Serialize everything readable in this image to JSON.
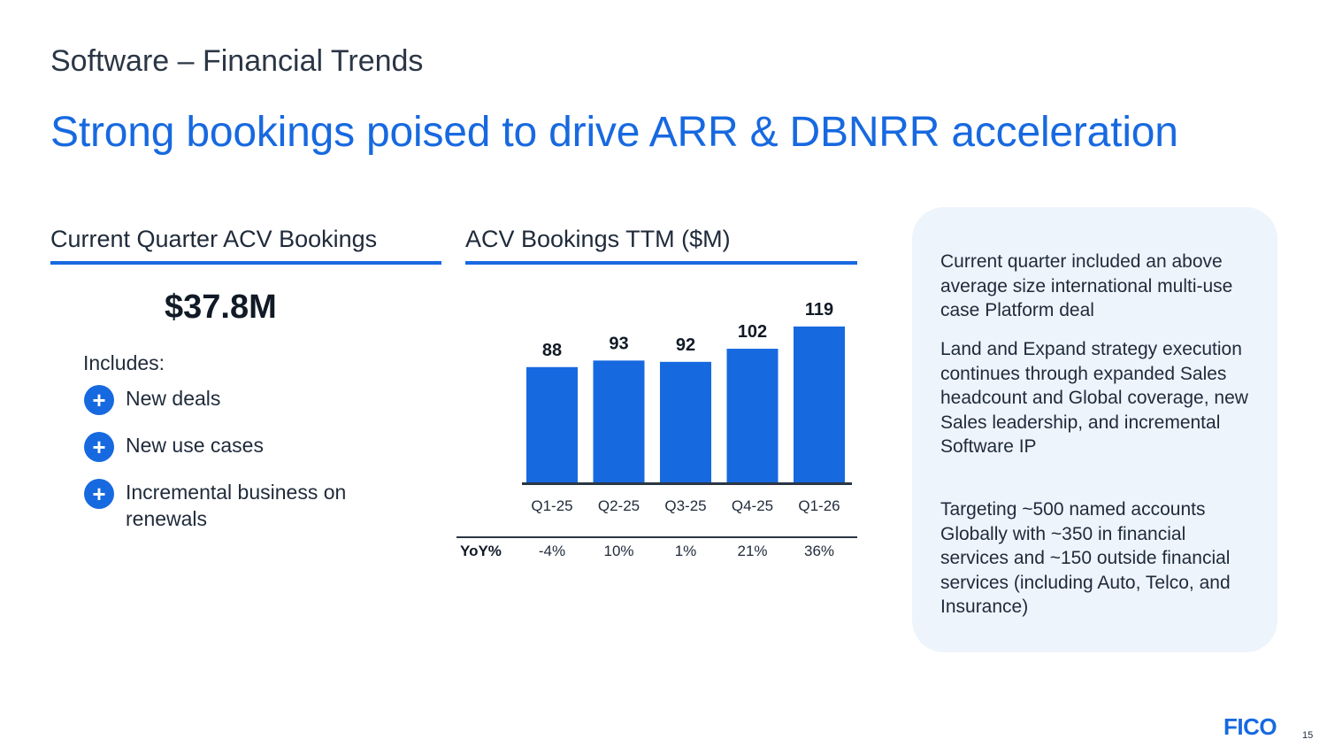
{
  "slide": {
    "kicker": "Software – Financial Trends",
    "headline": "Strong bookings poised to drive ARR & DBNRR acceleration",
    "page_number": "15",
    "logo_text": "FICO"
  },
  "left": {
    "heading": "Current Quarter ACV Bookings",
    "value": "$37.8M",
    "includes_label": "Includes:",
    "items": [
      "New deals",
      "New use cases",
      "Incremental business on renewals"
    ]
  },
  "chart_data": {
    "type": "bar",
    "title": "ACV Bookings TTM ($M)",
    "categories": [
      "Q1-25",
      "Q2-25",
      "Q3-25",
      "Q4-25",
      "Q1-26"
    ],
    "values": [
      88,
      93,
      92,
      102,
      119
    ],
    "yoy_label": "YoY%",
    "yoy": [
      "-4%",
      "10%",
      "1%",
      "21%",
      "36%"
    ],
    "bar_color": "#1769e0"
  },
  "right_panel": {
    "paragraphs": [
      "Current quarter included an above average size international multi-use case Platform deal",
      "Land and Expand strategy execution continues through expanded Sales headcount and Global coverage, new Sales leadership, and incremental Software IP",
      "Targeting ~500 named accounts Globally with ~350 in financial services and ~150 outside financial services (including Auto, Telco, and Insurance)"
    ]
  },
  "colors": {
    "accent": "#1769e0",
    "panel_bg": "#eef4fc",
    "text": "#1f2a3a"
  }
}
